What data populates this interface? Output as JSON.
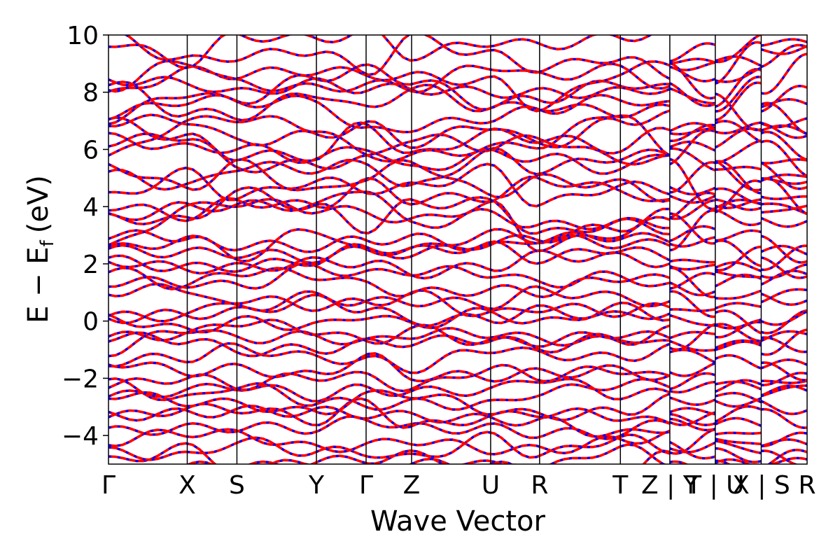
{
  "chart_data": {
    "type": "line",
    "xlabel": "Wave Vector",
    "ylabel": "E − E",
    "ylabel_sub": "f",
    "ylabel_unit": "(eV)",
    "ylim": [
      -5,
      10
    ],
    "yticks": [
      -4,
      -2,
      0,
      2,
      4,
      6,
      8,
      10
    ],
    "ytick_labels": [
      "−4",
      "−2",
      "0",
      "2",
      "4",
      "6",
      "8",
      "10"
    ],
    "kpoints": [
      {
        "label": "Γ",
        "x": 0.0
      },
      {
        "label": "X",
        "x": 0.1644
      },
      {
        "label": "S",
        "x": 0.2681
      },
      {
        "label": "Y",
        "x": 0.4341
      },
      {
        "label": "Γ",
        "x": 0.5378
      },
      {
        "label": "Z",
        "x": 0.6328
      },
      {
        "label": "U",
        "x": 0.7978
      },
      {
        "label": "R",
        "x": 0.9
      },
      {
        "label": "T",
        "x": 1.0687
      },
      {
        "label": "Z | Y",
        "x": 1.1719
      },
      {
        "label": "T | U",
        "x": 1.2668
      },
      {
        "label": "X | S",
        "x": 1.3627
      },
      {
        "label": "R",
        "x": 1.4585
      }
    ],
    "discontinuities": [
      1.1719,
      1.2668,
      1.3627
    ],
    "series": [
      {
        "color": "#ff0000",
        "style": "solid"
      },
      {
        "color": "#0000ff",
        "style": "dashed"
      }
    ]
  }
}
